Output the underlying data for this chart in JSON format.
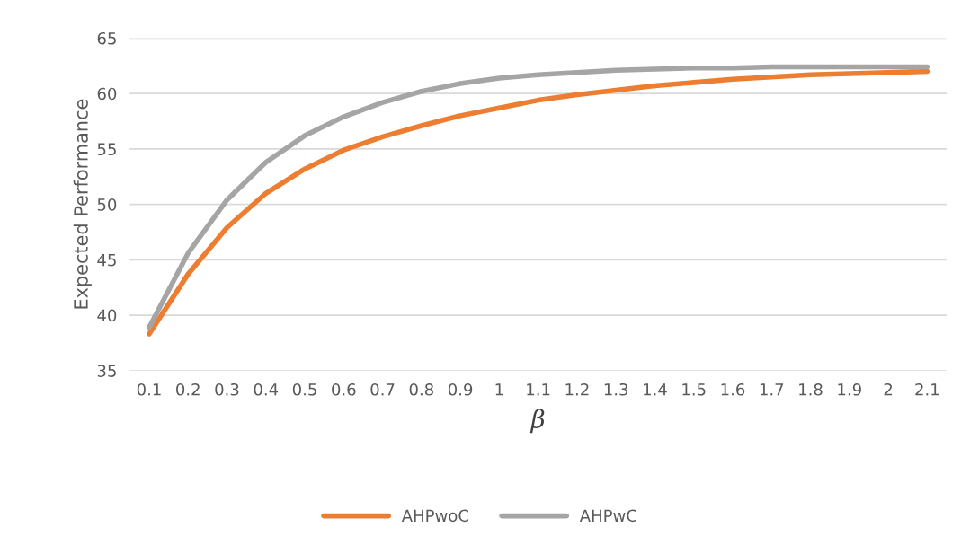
{
  "chart_data": {
    "type": "line",
    "xlabel": "β",
    "ylabel": "Expected Performance",
    "categories": [
      "0.1",
      "0.2",
      "0.3",
      "0.4",
      "0.5",
      "0.6",
      "0.7",
      "0.8",
      "0.9",
      "1",
      "1.1",
      "1.2",
      "1.3",
      "1.4",
      "1.5",
      "1.6",
      "1.7",
      "1.8",
      "1.9",
      "2",
      "2.1"
    ],
    "series": [
      {
        "name": "AHPwoC",
        "color": "#ed7d31",
        "values": [
          38.3,
          43.7,
          47.9,
          51.0,
          53.2,
          54.9,
          56.1,
          57.1,
          58.0,
          58.7,
          59.4,
          59.9,
          60.3,
          60.7,
          61.0,
          61.3,
          61.5,
          61.7,
          61.8,
          61.9,
          62.0
        ]
      },
      {
        "name": "AHPwC",
        "color": "#a5a5a5",
        "values": [
          38.9,
          45.6,
          50.4,
          53.8,
          56.2,
          57.9,
          59.2,
          60.2,
          60.9,
          61.4,
          61.7,
          61.9,
          62.1,
          62.2,
          62.3,
          62.3,
          62.4,
          62.4,
          62.4,
          62.4,
          62.4
        ]
      }
    ],
    "ylim": [
      35,
      65
    ],
    "yticks": [
      35,
      40,
      45,
      50,
      55,
      60,
      65
    ],
    "grid": "y",
    "legend": "bottom",
    "marker": "none",
    "line_style": "solid"
  }
}
